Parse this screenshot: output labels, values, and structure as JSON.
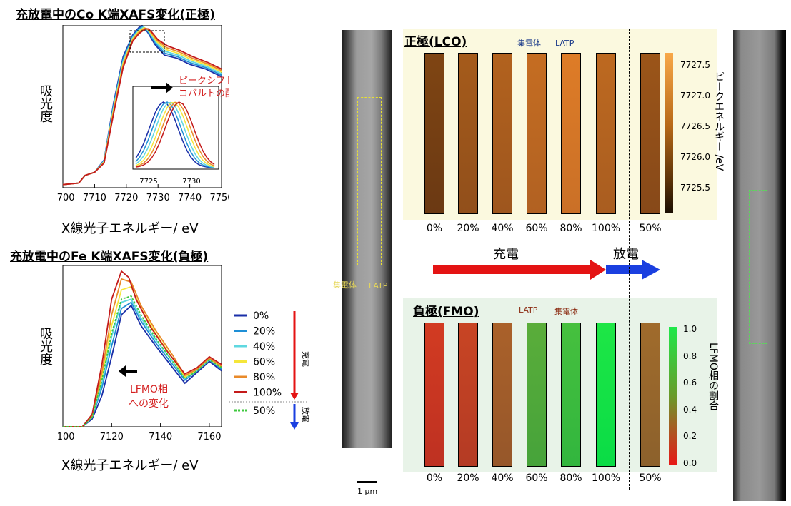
{
  "colors": {
    "c0": "#1a2fa8",
    "c20": "#1e8fd6",
    "c40": "#5fd8e0",
    "c60": "#f5e63a",
    "c80": "#e98a2a",
    "c100": "#c41a1a",
    "c50": "#3ec83e",
    "charge": "#e41313",
    "discharge": "#1a3fe0"
  },
  "left": {
    "co": {
      "title": "充放電中のCo K端XAFS変化(正極)",
      "ylabel": "吸光度",
      "xlabel": "X線光子エネルギー/ eV",
      "xticks": [
        "7700",
        "7710",
        "7720",
        "7730",
        "7740",
        "7750"
      ],
      "inset_ticks": [
        "7725",
        "7730"
      ],
      "note_line1": "ピークシフト=",
      "note_line2": "コバルトの酸化"
    },
    "fe": {
      "title": "充放電中のFe K端XAFS変化(負極)",
      "ylabel": "吸光度",
      "xlabel": "X線光子エネルギー/ eV",
      "xticks": [
        "7100",
        "7120",
        "7140",
        "7160"
      ],
      "note_line1": "LFMO相",
      "note_line2": "への変化"
    },
    "legend": [
      "0%",
      "20%",
      "40%",
      "60%",
      "80%",
      "100%",
      "50%"
    ],
    "legend_charge": "充電",
    "legend_discharge": "放電"
  },
  "chart_data": [
    {
      "type": "line",
      "title": "充放電中のCo K端XAFS変化(正極)",
      "xlabel": "X線光子エネルギー/ eV",
      "ylabel": "吸光度",
      "xlim": [
        7700,
        7750
      ],
      "series": [
        {
          "name": "0%",
          "x": [
            7700,
            7705,
            7707,
            7710,
            7713,
            7716,
            7719,
            7722,
            7724,
            7725,
            7726,
            7727,
            7729,
            7732,
            7736,
            7740,
            7745,
            7750
          ],
          "y": [
            0.02,
            0.03,
            0.08,
            0.1,
            0.18,
            0.55,
            0.85,
            0.99,
            1.04,
            1.05,
            1.03,
            1.0,
            0.93,
            0.86,
            0.84,
            0.8,
            0.77,
            0.72
          ]
        },
        {
          "name": "100%",
          "x": [
            7700,
            7705,
            7707,
            7710,
            7713,
            7716,
            7719,
            7722,
            7724,
            7726,
            7727,
            7728,
            7730,
            7733,
            7737,
            7741,
            7746,
            7750
          ],
          "y": [
            0.02,
            0.03,
            0.08,
            0.1,
            0.16,
            0.48,
            0.78,
            0.95,
            1.0,
            1.03,
            1.03,
            1.01,
            0.96,
            0.92,
            0.89,
            0.85,
            0.81,
            0.77
          ]
        }
      ]
    },
    {
      "type": "line",
      "title": "充放電中のFe K端XAFS変化(負極)",
      "xlabel": "X線光子エネルギー/ eV",
      "ylabel": "吸光度",
      "xlim": [
        7100,
        7165
      ],
      "series": [
        {
          "name": "0%",
          "x": [
            7100,
            7108,
            7112,
            7116,
            7120,
            7124,
            7128,
            7132,
            7138,
            7145,
            7150,
            7155,
            7160,
            7165
          ],
          "y": [
            0.0,
            0.0,
            0.05,
            0.2,
            0.45,
            0.72,
            0.78,
            0.65,
            0.52,
            0.38,
            0.28,
            0.35,
            0.42,
            0.36
          ]
        },
        {
          "name": "20%",
          "x": [
            7100,
            7108,
            7112,
            7116,
            7120,
            7124,
            7128,
            7132,
            7138,
            7145,
            7150,
            7155,
            7160,
            7165
          ],
          "y": [
            0.0,
            0.0,
            0.06,
            0.25,
            0.52,
            0.76,
            0.8,
            0.68,
            0.54,
            0.4,
            0.3,
            0.36,
            0.43,
            0.37
          ]
        },
        {
          "name": "40%",
          "x": [
            7100,
            7108,
            7112,
            7116,
            7120,
            7124,
            7128,
            7132,
            7138,
            7145,
            7150,
            7155,
            7160,
            7165
          ],
          "y": [
            0.0,
            0.0,
            0.06,
            0.28,
            0.58,
            0.8,
            0.82,
            0.7,
            0.56,
            0.42,
            0.31,
            0.36,
            0.43,
            0.38
          ]
        },
        {
          "name": "60%",
          "x": [
            7100,
            7108,
            7112,
            7116,
            7120,
            7124,
            7128,
            7132,
            7138,
            7145,
            7150,
            7155,
            7160,
            7165
          ],
          "y": [
            0.0,
            0.0,
            0.07,
            0.32,
            0.65,
            0.88,
            0.9,
            0.76,
            0.6,
            0.44,
            0.32,
            0.37,
            0.44,
            0.38
          ]
        },
        {
          "name": "80%",
          "x": [
            7100,
            7108,
            7112,
            7116,
            7120,
            7124,
            7128,
            7132,
            7138,
            7145,
            7150,
            7155,
            7160,
            7165
          ],
          "y": [
            0.0,
            0.0,
            0.07,
            0.35,
            0.72,
            0.95,
            0.93,
            0.78,
            0.62,
            0.46,
            0.33,
            0.37,
            0.44,
            0.39
          ]
        },
        {
          "name": "100%",
          "x": [
            7100,
            7108,
            7112,
            7116,
            7120,
            7124,
            7127,
            7130,
            7136,
            7143,
            7150,
            7155,
            7160,
            7165
          ],
          "y": [
            0.0,
            0.0,
            0.08,
            0.4,
            0.82,
            1.0,
            0.96,
            0.82,
            0.64,
            0.48,
            0.34,
            0.38,
            0.45,
            0.4
          ]
        },
        {
          "name": "50%",
          "x": [
            7100,
            7108,
            7112,
            7116,
            7120,
            7124,
            7128,
            7132,
            7138,
            7145,
            7150,
            7155,
            7160,
            7165
          ],
          "y": [
            0.0,
            0.0,
            0.06,
            0.3,
            0.6,
            0.82,
            0.84,
            0.72,
            0.57,
            0.42,
            0.31,
            0.36,
            0.43,
            0.38
          ]
        }
      ]
    }
  ],
  "micro": {
    "left_label_collector": "集電体",
    "left_label_latp": "LATP",
    "scale": "1 µm",
    "lco": {
      "title": "正極(LCO)",
      "label_collector": "集電体",
      "label_latp": "LATP",
      "percents": [
        "0%",
        "20%",
        "40%",
        "60%",
        "80%",
        "100%",
        "50%"
      ],
      "brightness": [
        0.35,
        0.55,
        0.62,
        0.72,
        0.85,
        0.68,
        0.5
      ]
    },
    "fmo": {
      "title": "負極(FMO)",
      "label_latp": "LATP",
      "label_collector": "集電体",
      "percents": [
        "0%",
        "20%",
        "40%",
        "60%",
        "80%",
        "100%",
        "50%"
      ],
      "fraction": [
        0.1,
        0.15,
        0.3,
        0.7,
        0.8,
        1.0,
        0.35
      ]
    },
    "arrows": {
      "charge": "充電",
      "discharge": "放電"
    },
    "colorbar_lco": {
      "label": "ピークエネルギー /eV",
      "ticks": [
        "7727.5",
        "7727.0",
        "7726.5",
        "7726.0",
        "7725.5"
      ]
    },
    "colorbar_fmo": {
      "label": "LFMO相の割合",
      "ticks": [
        "1.0",
        "0.8",
        "0.6",
        "0.4",
        "0.2",
        "0.0"
      ]
    }
  }
}
